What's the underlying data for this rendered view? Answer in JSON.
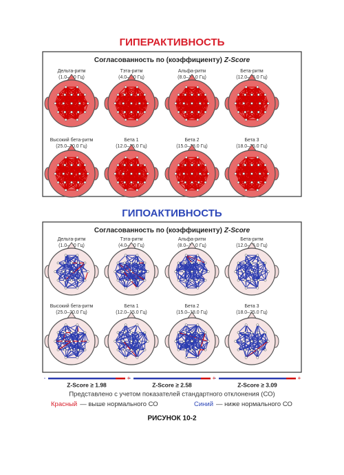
{
  "hyper": {
    "title": "ГИПЕРАКТИВНОСТЬ",
    "panel_title": "Согласованность по (коэффициенту)",
    "panel_title_em": "Z-Score",
    "bands": [
      {
        "name": "Дельта-ритм",
        "range": "(1.0–4.0 Гц)"
      },
      {
        "name": "Тэта-ритм",
        "range": "(4.0–8.0 Гц)"
      },
      {
        "name": "Альфа-ритм",
        "range": "(8.0–12.0 Гц)"
      },
      {
        "name": "Бета-ритм",
        "range": "(12.0–25.0 Гц)"
      },
      {
        "name": "Высокий бета-ритм",
        "range": "(25.0–30.0 Гц)"
      },
      {
        "name": "Бета 1",
        "range": "(12.0–15.0 Гц)"
      },
      {
        "name": "Бета 2",
        "range": "(15.0–18.0 Гц)"
      },
      {
        "name": "Бета 3",
        "range": "(18.0–25.0 Гц)"
      }
    ]
  },
  "hypo": {
    "title": "ГИПОАКТИВНОСТЬ",
    "panel_title": "Согласованность по (коэффициенту)",
    "panel_title_em": "Z-Score",
    "bands": [
      {
        "name": "Дельта-ритм",
        "range": "(1.0–4.0 Гц)"
      },
      {
        "name": "Тэта-ритм",
        "range": "(4.0–8.0 Гц)"
      },
      {
        "name": "Альфа-ритм",
        "range": "(8.0–12.0 Гц)"
      },
      {
        "name": "Бета-ритм",
        "range": "(12.0–25.0 Гц)"
      },
      {
        "name": "Высокий бета-ритм",
        "range": "(25.0–30.0 Гц)"
      },
      {
        "name": "Бета 1",
        "range": "(12.0–15.0 Гц)"
      },
      {
        "name": "Бета 2",
        "range": "(15.0–18.0 Гц)"
      },
      {
        "name": "Бета 3",
        "range": "(18.0–25.0 Гц)"
      }
    ]
  },
  "legend": [
    {
      "minus": "-",
      "label": "Z-Score ≥ 1.98",
      "plus": "+"
    },
    {
      "minus": "-",
      "label": "Z-Score ≥ 2.58",
      "plus": "+"
    },
    {
      "minus": "-",
      "label": "Z-Score ≥ 3.09",
      "plus": "+"
    }
  ],
  "notes": {
    "line1": "Представлено с учетом показателей стандартного отклонения (СО)",
    "red_label": "Красный",
    "red_text": "— выше нормального СО",
    "blue_label": "Синий",
    "blue_text": "— ниже нормального СО"
  },
  "caption": "РИСУНОК 10-2"
}
